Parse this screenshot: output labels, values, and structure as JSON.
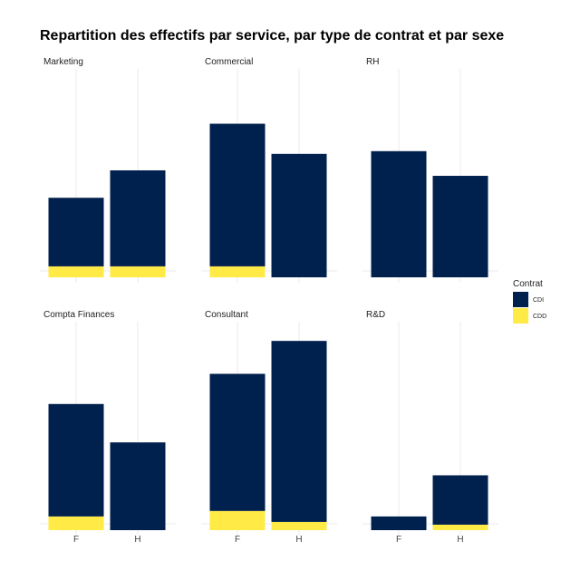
{
  "chart_data": {
    "type": "bar",
    "stacked": true,
    "faceted": true,
    "title": "Repartition des effectifs par service, par type de contrat et par sexe",
    "categories": [
      "F",
      "H"
    ],
    "legend": {
      "title": "Contrat",
      "position": "right",
      "entries": [
        {
          "label": "CDI",
          "color": "#00204d"
        },
        {
          "label": "CDD",
          "color": "#ffea46"
        }
      ]
    },
    "panels": [
      {
        "name": "Marketing",
        "series": [
          {
            "name": "CDI",
            "values": [
              12.5,
              17.5
            ]
          },
          {
            "name": "CDD",
            "values": [
              2,
              2
            ]
          }
        ]
      },
      {
        "name": "Commercial",
        "series": [
          {
            "name": "CDI",
            "values": [
              26,
              22.5
            ]
          },
          {
            "name": "CDD",
            "values": [
              2,
              0
            ]
          }
        ]
      },
      {
        "name": "RH",
        "series": [
          {
            "name": "CDI",
            "values": [
              23,
              18.5
            ]
          },
          {
            "name": "CDD",
            "values": [
              0,
              0
            ]
          }
        ]
      },
      {
        "name": "Compta Finances",
        "series": [
          {
            "name": "CDI",
            "values": [
              20.5,
              16
            ]
          },
          {
            "name": "CDD",
            "values": [
              2.5,
              0
            ]
          }
        ]
      },
      {
        "name": "Consultant",
        "series": [
          {
            "name": "CDI",
            "values": [
              25,
              33
            ]
          },
          {
            "name": "CDD",
            "values": [
              3.5,
              1.5
            ]
          }
        ]
      },
      {
        "name": "R&D",
        "series": [
          {
            "name": "CDI",
            "values": [
              2.5,
              9
            ]
          },
          {
            "name": "CDD",
            "values": [
              0,
              1
            ]
          }
        ]
      }
    ],
    "ylim": [
      0,
      38
    ],
    "grid": true
  }
}
